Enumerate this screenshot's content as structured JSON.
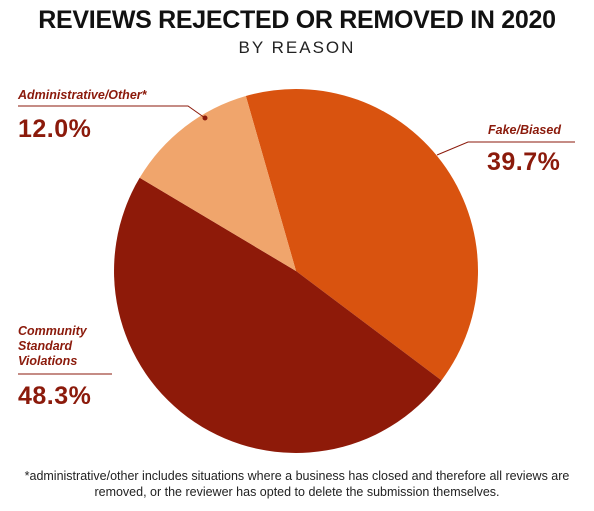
{
  "chart_data": {
    "type": "pie",
    "title": "REVIEWS REJECTED OR REMOVED IN 2020",
    "subtitle": "BY REASON",
    "slices": [
      {
        "label": "Fake/Biased",
        "value": 39.7,
        "display": "39.7%",
        "color": "#d9530f"
      },
      {
        "label": "Community Standard Violations",
        "label_lines": [
          "Community",
          "Standard",
          "Violations"
        ],
        "value": 48.3,
        "display": "48.3%",
        "color": "#8e1a09"
      },
      {
        "label": "Administrative/Other*",
        "value": 12.0,
        "display": "12.0%",
        "color": "#f0a56c"
      }
    ],
    "label_color": "#8b1a0b",
    "footnote": "*administrative/other includes situations where a business has closed and therefore all reviews are removed, or the reviewer has opted to delete the submission themselves."
  }
}
